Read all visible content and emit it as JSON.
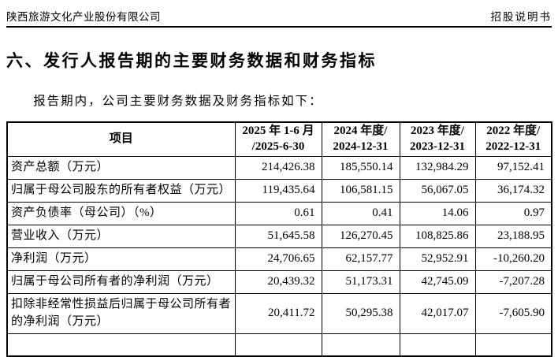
{
  "page_header": {
    "company": "陕西旅游文化产业股份有限公司",
    "doc_type": "招股说明书"
  },
  "section": {
    "title": "六、发行人报告期的主要财务数据和财务指标",
    "intro": "报告期内，公司主要财务数据及财务指标如下："
  },
  "table": {
    "columns": [
      {
        "label": "项目"
      },
      {
        "line1": "2025 年 1-6 月",
        "line2": "/2025-6-30"
      },
      {
        "line1": "2024 年度/",
        "line2": "2024-12-31"
      },
      {
        "line1": "2023 年度/",
        "line2": "2023-12-31"
      },
      {
        "line1": "2022 年度/",
        "line2": "2022-12-31"
      }
    ],
    "rows": [
      {
        "label": "资产总额（万元）",
        "values": [
          "214,426.38",
          "185,550.14",
          "132,984.29",
          "97,152.41"
        ]
      },
      {
        "label": "归属于母公司股东的所有者权益（万元）",
        "values": [
          "119,435.64",
          "106,581.15",
          "56,067.05",
          "36,174.32"
        ]
      },
      {
        "label": "资产负债率（母公司）（%）",
        "values": [
          "0.61",
          "0.41",
          "14.06",
          "0.97"
        ]
      },
      {
        "label": "营业收入（万元）",
        "values": [
          "51,645.58",
          "126,270.45",
          "108,825.86",
          "23,188.95"
        ]
      },
      {
        "label": "净利润（万元）",
        "values": [
          "24,706.65",
          "62,157.77",
          "52,952.91",
          "-10,260.20"
        ]
      },
      {
        "label": "归属于母公司所有者的净利润（万元）",
        "values": [
          "20,439.32",
          "51,173.31",
          "42,745.09",
          "-7,207.28"
        ]
      },
      {
        "label": "扣除非经常性损益后归属于母公司所有者的净利润（万元）",
        "values": [
          "20,411.72",
          "50,295.38",
          "42,017.07",
          "-7,605.90"
        ]
      }
    ]
  }
}
